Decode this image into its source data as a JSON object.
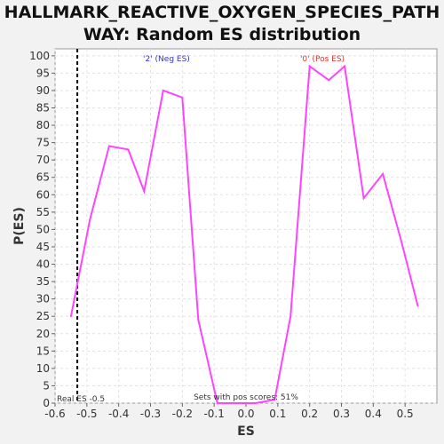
{
  "chart_data": {
    "type": "line",
    "title": "HALLMARK_REACTIVE_OXYGEN_SPECIES_PATHWAY: Random ES distribution",
    "xlabel": "ES",
    "ylabel": "P(ES)",
    "xlim": [
      -0.6,
      0.6
    ],
    "ylim": [
      0,
      102
    ],
    "xticks": [
      "-0.6",
      "-0.5",
      "-0.4",
      "-0.3",
      "-0.2",
      "-0.1",
      "0.0",
      "0.1",
      "0.2",
      "0.3",
      "0.4",
      "0.5"
    ],
    "yticks": [
      "0",
      "5",
      "10",
      "15",
      "20",
      "25",
      "30",
      "35",
      "40",
      "45",
      "50",
      "55",
      "60",
      "65",
      "70",
      "75",
      "80",
      "85",
      "90",
      "95",
      "100"
    ],
    "grid": true,
    "series": [
      {
        "color": "#ff44ff",
        "x": [
          -0.55,
          -0.49,
          -0.43,
          -0.37,
          -0.32,
          -0.26,
          -0.2,
          -0.15,
          -0.09,
          -0.04,
          0.03,
          0.09,
          0.14,
          0.2,
          0.26,
          0.31,
          0.37,
          0.43,
          0.49,
          0.54
        ],
        "y": [
          25,
          53,
          74,
          73,
          61,
          90,
          88,
          24,
          0,
          0,
          0,
          1,
          25,
          97,
          93,
          97,
          59,
          66,
          46,
          28
        ]
      }
    ],
    "real_es": -0.53,
    "annotations": {
      "neg_label": "'2' (Neg ES)",
      "pos_label": "'0' (Pos ES)",
      "real_es_label": "Real ES -0.5",
      "pos_scores_label": "Sets with pos scores: 51%"
    },
    "colors": {
      "neg_label": "#3333cc",
      "pos_label": "#dd3333",
      "line": "#ff44ff",
      "marker": "#000000"
    }
  }
}
